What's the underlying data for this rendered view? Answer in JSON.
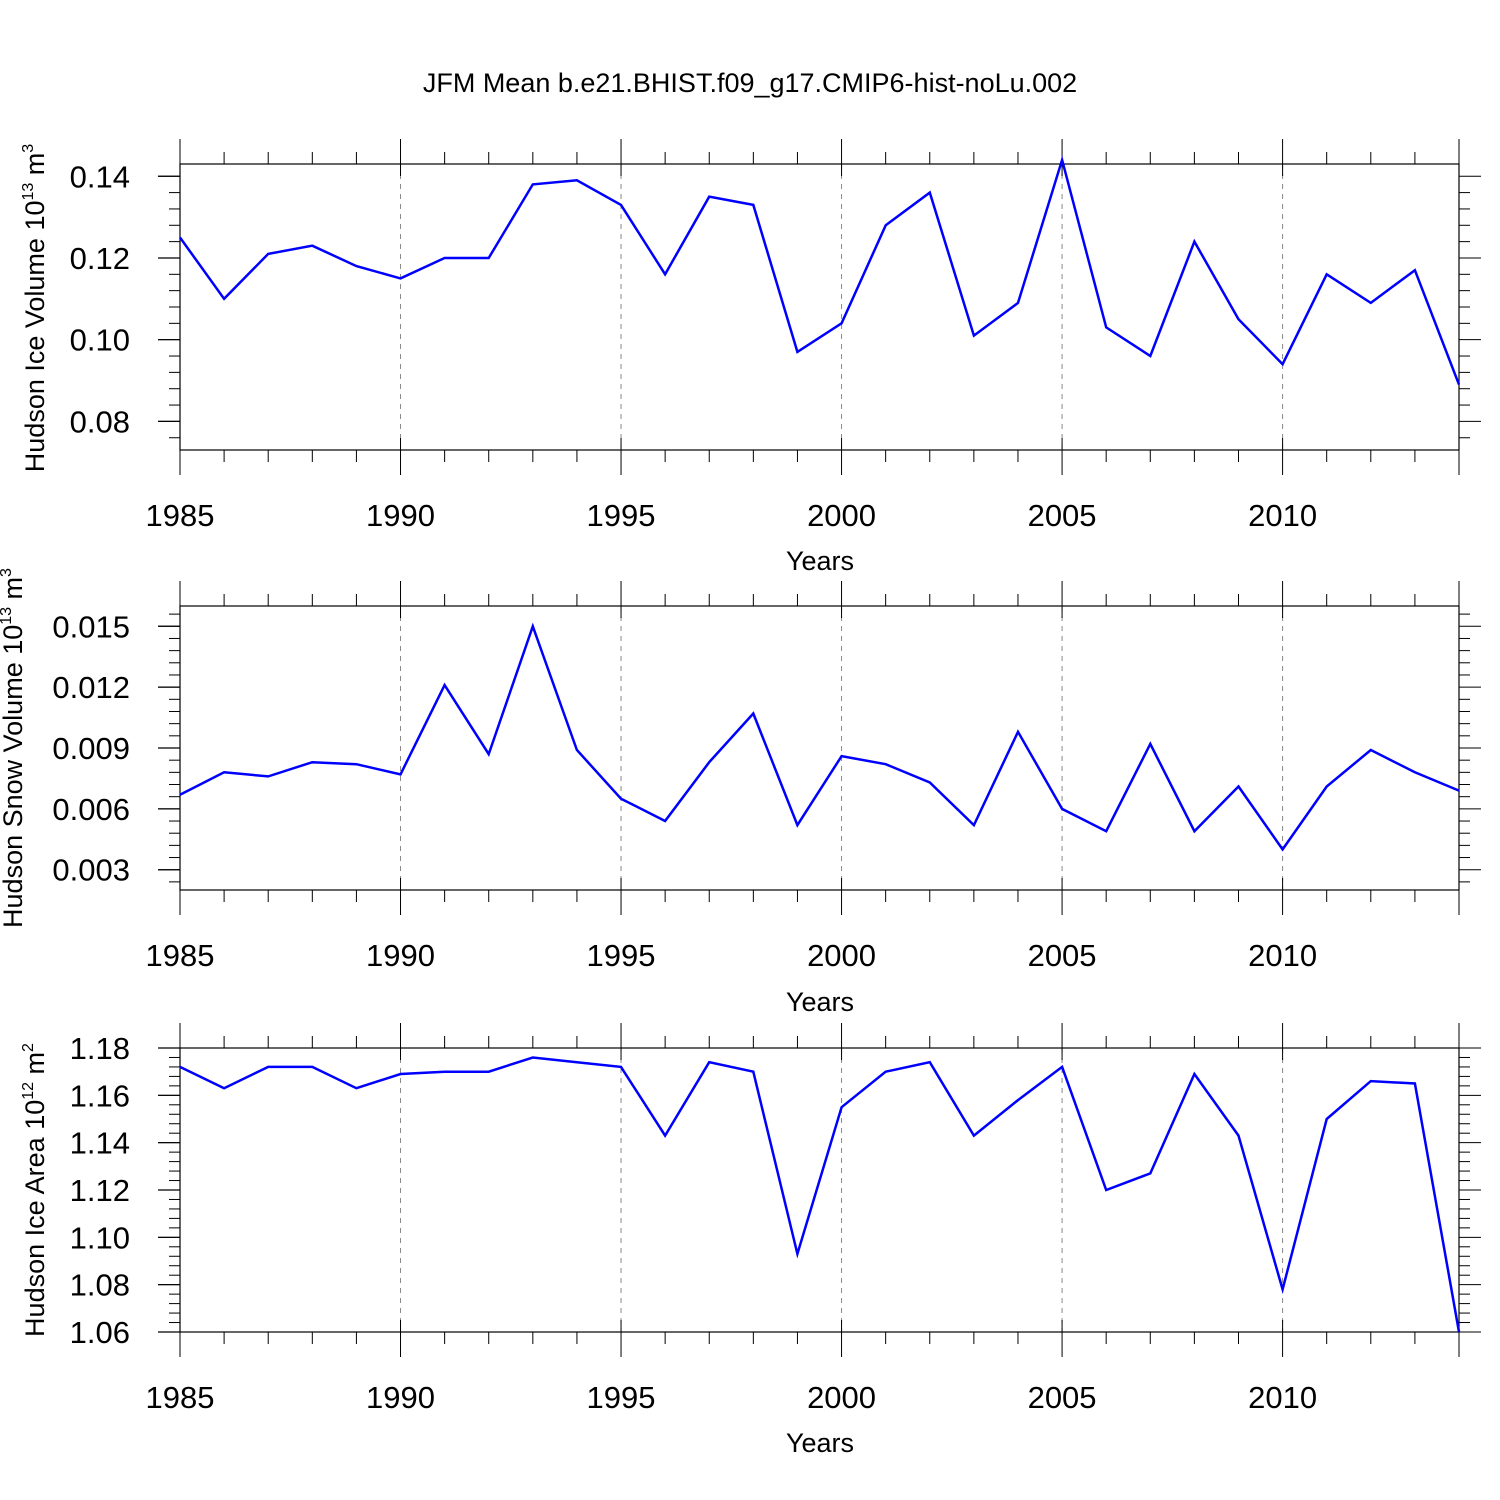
{
  "title": "JFM Mean b.e21.BHIST.f09_g17.CMIP6-hist-noLu.002",
  "chart_data": [
    {
      "type": "line",
      "ylabel": "Hudson Ice Volume 10",
      "ylabel_exponent": "13",
      "ylabel_unit": "m",
      "ylabel_unit_exponent": "3",
      "xlabel": "Years",
      "xlim": [
        1985,
        2014
      ],
      "ylim": [
        0.073,
        0.143
      ],
      "y_ticks": [
        "0.08",
        "0.10",
        "0.12",
        "0.14"
      ],
      "y_tick_values": [
        0.08,
        0.1,
        0.12,
        0.14
      ],
      "x_ticks": [
        "1985",
        "1990",
        "1995",
        "2000",
        "2005",
        "2010"
      ],
      "x_tick_values": [
        1985,
        1990,
        1995,
        2000,
        2005,
        2010
      ],
      "grid_x": [
        1990,
        1995,
        2000,
        2005,
        2010
      ],
      "series": [
        {
          "name": "Hudson Ice Volume",
          "color": "#0000ff",
          "x": [
            1985,
            1986,
            1987,
            1988,
            1989,
            1990,
            1991,
            1992,
            1993,
            1994,
            1995,
            1996,
            1997,
            1998,
            1999,
            2000,
            2001,
            2002,
            2003,
            2004,
            2005,
            2006,
            2007,
            2008,
            2009,
            2010,
            2011,
            2012,
            2013,
            2014
          ],
          "values": [
            0.125,
            0.11,
            0.121,
            0.123,
            0.118,
            0.115,
            0.12,
            0.12,
            0.138,
            0.139,
            0.133,
            0.116,
            0.135,
            0.133,
            0.097,
            0.104,
            0.128,
            0.136,
            0.101,
            0.109,
            0.144,
            0.103,
            0.096,
            0.124,
            0.105,
            0.094,
            0.116,
            0.109,
            0.117,
            0.089
          ]
        }
      ]
    },
    {
      "type": "line",
      "ylabel": "Hudson Snow Volume 10",
      "ylabel_exponent": "13",
      "ylabel_unit": "m",
      "ylabel_unit_exponent": "3",
      "xlabel": "Years",
      "xlim": [
        1985,
        2014
      ],
      "ylim": [
        0.002,
        0.016
      ],
      "y_ticks": [
        "0.003",
        "0.006",
        "0.009",
        "0.012",
        "0.015"
      ],
      "y_tick_values": [
        0.003,
        0.006,
        0.009,
        0.012,
        0.015
      ],
      "x_ticks": [
        "1985",
        "1990",
        "1995",
        "2000",
        "2005",
        "2010"
      ],
      "x_tick_values": [
        1985,
        1990,
        1995,
        2000,
        2005,
        2010
      ],
      "grid_x": [
        1990,
        1995,
        2000,
        2005,
        2010
      ],
      "series": [
        {
          "name": "Hudson Snow Volume",
          "color": "#0000ff",
          "x": [
            1985,
            1986,
            1987,
            1988,
            1989,
            1990,
            1991,
            1992,
            1993,
            1994,
            1995,
            1996,
            1997,
            1998,
            1999,
            2000,
            2001,
            2002,
            2003,
            2004,
            2005,
            2006,
            2007,
            2008,
            2009,
            2010,
            2011,
            2012,
            2013,
            2014
          ],
          "values": [
            0.0067,
            0.0078,
            0.0076,
            0.0083,
            0.0082,
            0.0077,
            0.0121,
            0.0087,
            0.015,
            0.0089,
            0.0065,
            0.0054,
            0.0083,
            0.0107,
            0.0052,
            0.0086,
            0.0082,
            0.0073,
            0.0052,
            0.0098,
            0.006,
            0.0049,
            0.0092,
            0.0049,
            0.0071,
            0.004,
            0.0071,
            0.0089,
            0.0078,
            0.0069
          ]
        }
      ]
    },
    {
      "type": "line",
      "ylabel": "Hudson Ice Area 10",
      "ylabel_exponent": "12",
      "ylabel_unit": "m",
      "ylabel_unit_exponent": "2",
      "xlabel": "Years",
      "xlim": [
        1985,
        2014
      ],
      "ylim": [
        1.06,
        1.18
      ],
      "y_ticks": [
        "1.06",
        "1.08",
        "1.10",
        "1.12",
        "1.14",
        "1.16",
        "1.18"
      ],
      "y_tick_values": [
        1.06,
        1.08,
        1.1,
        1.12,
        1.14,
        1.16,
        1.18
      ],
      "x_ticks": [
        "1985",
        "1990",
        "1995",
        "2000",
        "2005",
        "2010"
      ],
      "x_tick_values": [
        1985,
        1990,
        1995,
        2000,
        2005,
        2010
      ],
      "grid_x": [
        1990,
        1995,
        2000,
        2005,
        2010
      ],
      "series": [
        {
          "name": "Hudson Ice Area",
          "color": "#0000ff",
          "x": [
            1985,
            1986,
            1987,
            1988,
            1989,
            1990,
            1991,
            1992,
            1993,
            1994,
            1995,
            1996,
            1997,
            1998,
            1999,
            2000,
            2001,
            2002,
            2003,
            2004,
            2005,
            2006,
            2007,
            2008,
            2009,
            2010,
            2011,
            2012,
            2013,
            2014
          ],
          "values": [
            1.172,
            1.163,
            1.172,
            1.172,
            1.163,
            1.169,
            1.17,
            1.17,
            1.176,
            1.174,
            1.172,
            1.143,
            1.174,
            1.17,
            1.093,
            1.155,
            1.17,
            1.174,
            1.143,
            1.158,
            1.172,
            1.12,
            1.127,
            1.169,
            1.143,
            1.078,
            1.15,
            1.166,
            1.165,
            1.06
          ]
        }
      ]
    }
  ]
}
